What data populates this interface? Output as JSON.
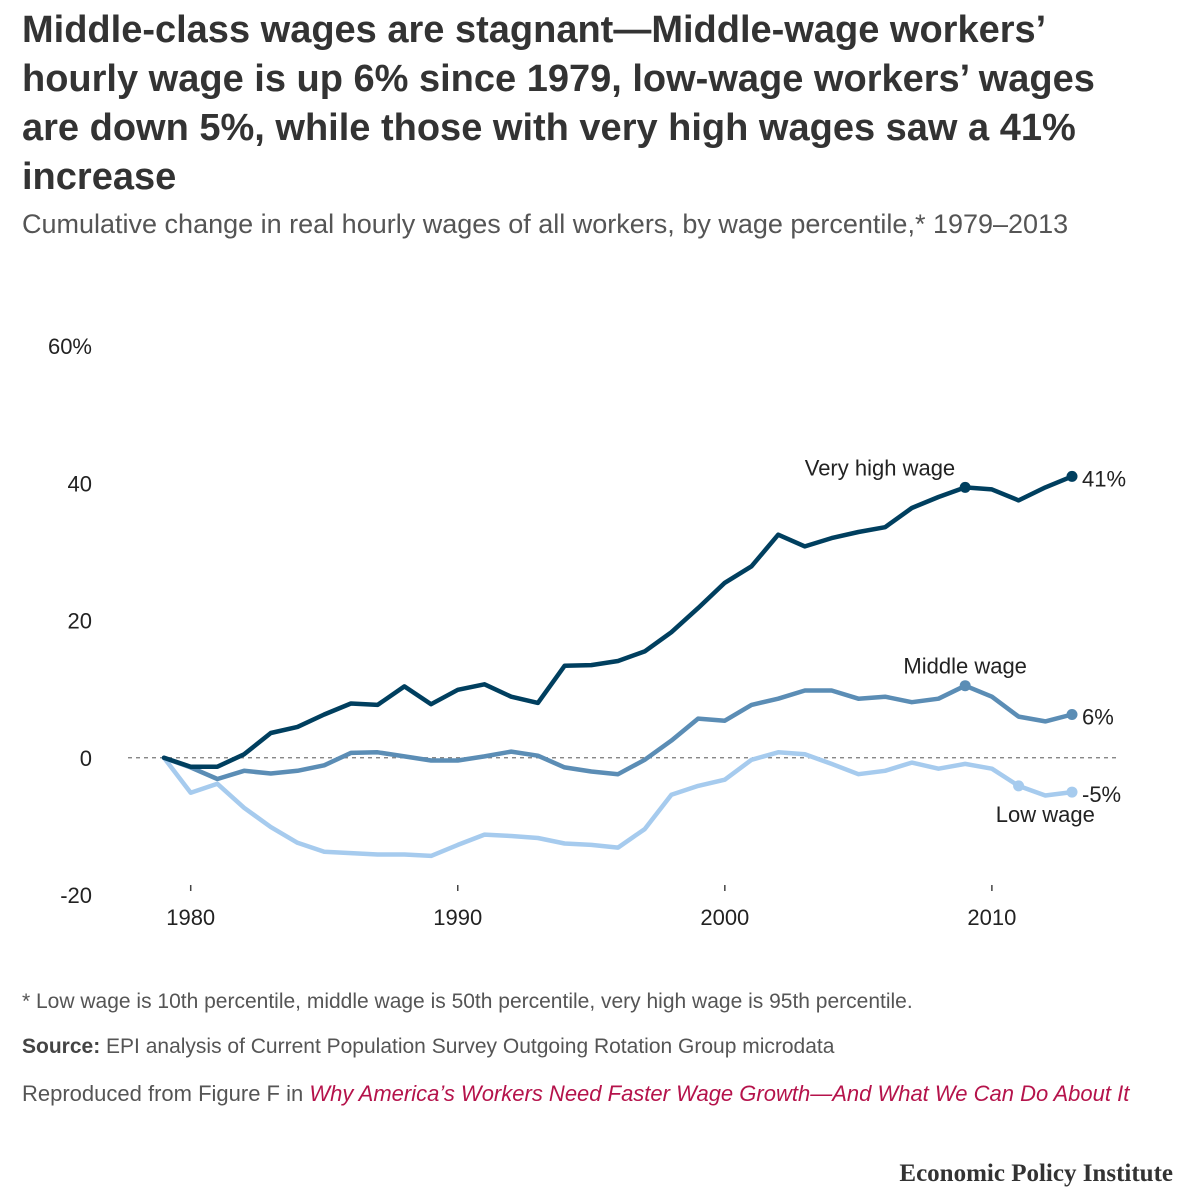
{
  "title": "Middle-class wages are stagnant—Middle-wage workers’ hourly wage is up 6% since 1979, low-wage workers’ wages are down 5%, while those with very high wages saw a 41% increase",
  "subtitle": "Cumulative change in real hourly wages of all workers, by wage percentile,* 1979–2013",
  "footnote": "* Low wage is 10th percentile, middle wage is 50th percentile, very high wage is 95th percentile.",
  "source_label": "Source:",
  "source_text": " EPI analysis of Current Population Survey Outgoing Rotation Group microdata",
  "reproduced_prefix": "Reproduced from Figure F in ",
  "reproduced_link": "Why America’s Workers Need Faster Wage Growth—And What We Can Do About It",
  "brand": "Economic Policy Institute",
  "chart_data": {
    "type": "line",
    "ylim": [
      -20,
      60
    ],
    "xlim": [
      1979,
      2013
    ],
    "yticks": [
      60,
      40,
      20,
      0,
      -20
    ],
    "ytick_labels": [
      "60%",
      "40",
      "20",
      "0",
      "-20"
    ],
    "xticks": [
      1980,
      1990,
      2000,
      2010
    ],
    "xtick_labels": [
      "1980",
      "1990",
      "2000",
      "2010"
    ],
    "grid": false,
    "zero_line": "dashed",
    "x": [
      1979,
      1980,
      1981,
      1982,
      1983,
      1984,
      1985,
      1986,
      1987,
      1988,
      1989,
      1990,
      1991,
      1992,
      1993,
      1994,
      1995,
      1996,
      1997,
      1998,
      1999,
      2000,
      2001,
      2002,
      2003,
      2004,
      2005,
      2006,
      2007,
      2008,
      2009,
      2010,
      2011,
      2012,
      2013
    ],
    "series": [
      {
        "name": "Very high wage",
        "color": "#003f5f",
        "end_label": "41%",
        "values": [
          0,
          -1.3,
          -1.3,
          0.5,
          3.6,
          4.5,
          6.3,
          7.9,
          7.7,
          10.4,
          7.8,
          9.9,
          10.7,
          8.9,
          8.0,
          13.4,
          13.5,
          14.1,
          15.5,
          18.3,
          21.8,
          25.5,
          27.9,
          32.5,
          30.8,
          32.0,
          32.9,
          33.6,
          36.4,
          38.0,
          39.4,
          39.1,
          37.5,
          39.4,
          41.0
        ]
      },
      {
        "name": "Middle wage",
        "color": "#5b8db5",
        "end_label": "6%",
        "values": [
          0,
          -1.4,
          -3.1,
          -1.9,
          -2.3,
          -1.9,
          -1.1,
          0.7,
          0.8,
          0.2,
          -0.4,
          -0.4,
          0.2,
          0.9,
          0.3,
          -1.4,
          -2.0,
          -2.4,
          -0.3,
          2.5,
          5.7,
          5.4,
          7.7,
          8.6,
          9.8,
          9.8,
          8.6,
          8.9,
          8.1,
          8.6,
          10.5,
          8.9,
          6.0,
          5.3,
          6.3
        ]
      },
      {
        "name": "Low wage",
        "color": "#a6cbee",
        "end_label": "-5%",
        "values": [
          0,
          -5.1,
          -3.8,
          -7.3,
          -10.1,
          -12.4,
          -13.7,
          -13.9,
          -14.1,
          -14.1,
          -14.3,
          -12.7,
          -11.2,
          -11.4,
          -11.7,
          -12.5,
          -12.7,
          -13.1,
          -10.4,
          -5.4,
          -4.1,
          -3.2,
          -0.3,
          0.8,
          0.5,
          -0.9,
          -2.4,
          -1.9,
          -0.7,
          -1.6,
          -0.9,
          -1.6,
          -4.1,
          -5.5,
          -5.0
        ]
      }
    ]
  }
}
